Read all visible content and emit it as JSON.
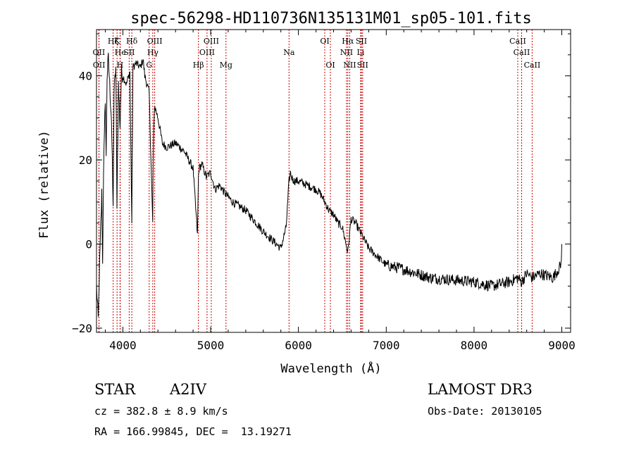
{
  "chart_data": {
    "type": "line",
    "title": "spec-56298-HD110736N135131M01_sp05-101.fits",
    "xlabel": "Wavelength (Å)",
    "ylabel": "Flux (relative)",
    "xlim": [
      3700,
      9100
    ],
    "ylim": [
      -21,
      51
    ],
    "xticks": [
      4000,
      5000,
      6000,
      7000,
      8000,
      9000
    ],
    "yticks": [
      -20,
      0,
      20,
      40
    ],
    "series": [
      {
        "name": "flux",
        "x": [
          3700,
          3720,
          3735,
          3750,
          3760,
          3770,
          3780,
          3790,
          3800,
          3810,
          3820,
          3835,
          3850,
          3870,
          3889,
          3900,
          3920,
          3933,
          3950,
          3968,
          3985,
          4000,
          4040,
          4080,
          4102,
          4115,
          4150,
          4200,
          4230,
          4250,
          4300,
          4340,
          4345,
          4360,
          4400,
          4450,
          4500,
          4600,
          4700,
          4800,
          4850,
          4861,
          4870,
          4900,
          4950,
          5000,
          5050,
          5100,
          5167,
          5250,
          5400,
          5600,
          5700,
          5800,
          5860,
          5893,
          5910,
          5920,
          5950,
          6000,
          6100,
          6200,
          6250,
          6300,
          6350,
          6400,
          6450,
          6500,
          6563,
          6600,
          6650,
          6700,
          6750,
          6800,
          6900,
          7000,
          7200,
          7500,
          8000,
          8200,
          8400,
          8498,
          8542,
          8600,
          8662,
          8750,
          8900,
          8990,
          9000
        ],
        "values": [
          -10,
          -18,
          -5,
          5,
          12,
          -5,
          18,
          25,
          35,
          20,
          40,
          44,
          38,
          30,
          8,
          36,
          42,
          10,
          38,
          28,
          41,
          40,
          38,
          41,
          5,
          42,
          43,
          42,
          44,
          40,
          36,
          5,
          20,
          33,
          30,
          24,
          23,
          24,
          22,
          18,
          2,
          16,
          18,
          19,
          16,
          17,
          13,
          14,
          12,
          10,
          8,
          3,
          1,
          -1,
          4,
          15,
          17,
          16,
          15,
          15,
          14,
          13,
          12,
          10,
          8,
          7,
          5,
          4,
          -2,
          6,
          5,
          3,
          1,
          -1,
          -3,
          -5,
          -6,
          -8,
          -9,
          -10,
          -9,
          -8,
          -9,
          -7,
          -8,
          -7,
          -8,
          -5,
          0
        ]
      }
    ],
    "annotations": [
      {
        "label": "Hζ",
        "row": 1,
        "wl": 3889
      },
      {
        "label": "K",
        "row": 1,
        "wl": 3934
      },
      {
        "label": "Hδ",
        "row": 1,
        "wl": 4102
      },
      {
        "label": "OIII",
        "row": 1,
        "wl": 4363
      },
      {
        "label": "OIII",
        "row": 1,
        "wl": 5007
      },
      {
        "label": "OI",
        "row": 1,
        "wl": 6300
      },
      {
        "label": "Hα",
        "row": 1,
        "wl": 6563
      },
      {
        "label": "SII",
        "row": 1,
        "wl": 6717
      },
      {
        "label": "CaII",
        "row": 1,
        "wl": 8498
      },
      {
        "label": "OII",
        "row": 2,
        "wl": 3727
      },
      {
        "label": "He",
        "row": 2,
        "wl": 3970
      },
      {
        "label": "SII",
        "row": 2,
        "wl": 4072
      },
      {
        "label": "Hγ",
        "row": 2,
        "wl": 4341
      },
      {
        "label": "OIII",
        "row": 2,
        "wl": 4959
      },
      {
        "label": "Na",
        "row": 2,
        "wl": 5893
      },
      {
        "label": "NII",
        "row": 2,
        "wl": 6548
      },
      {
        "label": "Li",
        "row": 2,
        "wl": 6708
      },
      {
        "label": "CaII",
        "row": 2,
        "wl": 8542
      },
      {
        "label": "OII",
        "row": 3,
        "wl": 3729
      },
      {
        "label": "H",
        "row": 3,
        "wl": 3968
      },
      {
        "label": "G",
        "row": 3,
        "wl": 4300
      },
      {
        "label": "Hβ",
        "row": 3,
        "wl": 4861
      },
      {
        "label": "Mg",
        "row": 3,
        "wl": 5175
      },
      {
        "label": "OI",
        "row": 3,
        "wl": 6364
      },
      {
        "label": "NII",
        "row": 3,
        "wl": 6584
      },
      {
        "label": "SII",
        "row": 3,
        "wl": 6731
      },
      {
        "label": "CaII",
        "row": 3,
        "wl": 8662
      }
    ]
  },
  "info": {
    "object_class": "STAR",
    "subclass": "A2IV",
    "survey": "LAMOST DR3",
    "cz": "cz = 382.8 ± 8.9 km/s",
    "obs_date": "Obs-Date: 20130105",
    "coords": "RA = 166.99845, DEC =  13.19271"
  },
  "colors": {
    "line_markers": "#cc0000",
    "spectrum": "#000000"
  }
}
